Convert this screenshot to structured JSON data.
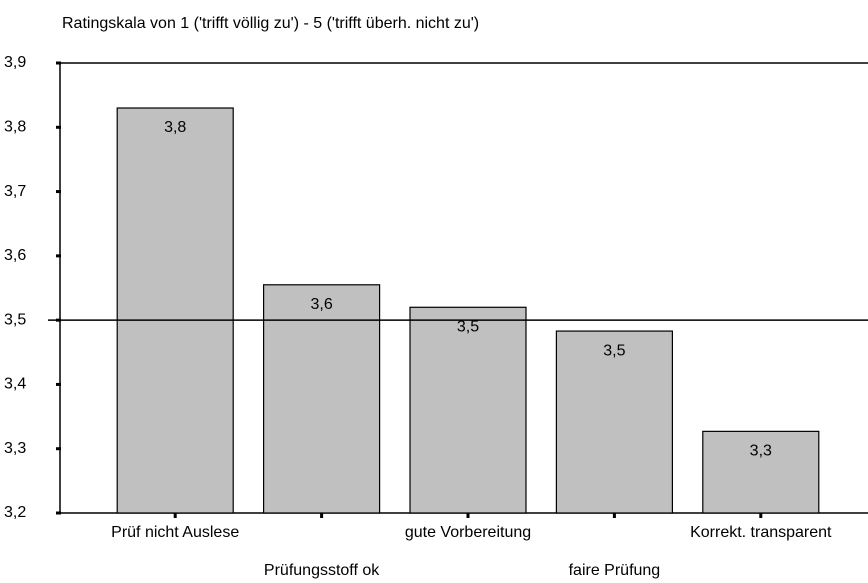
{
  "chart_data": {
    "type": "bar",
    "title": "Ratingskala von 1 ('trifft völlig zu') - 5 ('trifft überh. nicht zu')",
    "categories": [
      "Prüf nicht Auslese",
      "Prüfungsstoff ok",
      "gute Vorbereitung",
      "faire Prüfung",
      "Korrekt. transparent"
    ],
    "values": [
      3.83,
      3.555,
      3.52,
      3.483,
      3.327
    ],
    "value_labels": [
      "3,8",
      "3,6",
      "3,5",
      "3,5",
      "3,3"
    ],
    "color": "#c0c0c0",
    "ylim": [
      3.2,
      3.9
    ],
    "yticks": [
      {
        "value": 3.2,
        "label": "3,2"
      },
      {
        "value": 3.3,
        "label": "3,3"
      },
      {
        "value": 3.4,
        "label": "3,4"
      },
      {
        "value": 3.5,
        "label": "3,5"
      },
      {
        "value": 3.6,
        "label": "3,6"
      },
      {
        "value": 3.7,
        "label": "3,7"
      },
      {
        "value": 3.8,
        "label": "3,8"
      },
      {
        "value": 3.9,
        "label": "3,9"
      }
    ],
    "reference_line": 3.5
  }
}
